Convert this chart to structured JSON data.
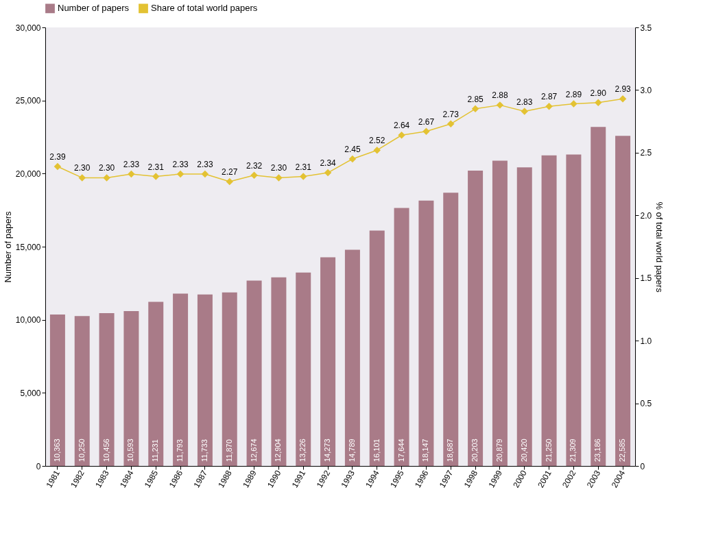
{
  "chart_data": {
    "type": "bar",
    "categories": [
      "1981",
      "1982",
      "1983",
      "1984",
      "1985",
      "1986",
      "1987",
      "1988",
      "1989",
      "1990",
      "1991",
      "1992",
      "1993",
      "1994",
      "1995",
      "1996",
      "1997",
      "1998",
      "1999",
      "2000",
      "2001",
      "2002",
      "2003",
      "2004"
    ],
    "ylabel": "Number of papers",
    "y2label": "% of total world papers",
    "ylim": [
      0,
      30000
    ],
    "yticks": [
      0,
      {
        "value": 5000,
        "label": "5,000"
      },
      {
        "value": 10000,
        "label": "10,000"
      },
      {
        "value": 15000,
        "label": "15,000"
      },
      {
        "value": 20000,
        "label": "20,000"
      },
      {
        "value": 25000,
        "label": "25,000"
      },
      {
        "value": 30000,
        "label": "30,000"
      }
    ],
    "y2lim": [
      0,
      3.5
    ],
    "y2ticks": [
      {
        "value": 0,
        "label": "0"
      },
      {
        "value": 0.5,
        "label": "0.5"
      },
      {
        "value": 1,
        "label": "1.0"
      },
      {
        "value": 1.5,
        "label": "1.5"
      },
      {
        "value": 2,
        "label": "2.0"
      },
      {
        "value": 2.5,
        "label": "2.5"
      },
      {
        "value": 3,
        "label": "3.0"
      },
      {
        "value": 3.5,
        "label": "3.5"
      }
    ],
    "series": [
      {
        "name": "Number of papers",
        "color": "#a97b88",
        "values": [
          10363,
          10250,
          10456,
          10593,
          11231,
          11793,
          11733,
          11870,
          12674,
          12904,
          13226,
          14273,
          14789,
          16101,
          17644,
          18147,
          18687,
          20203,
          20879,
          20420,
          21250,
          21309,
          23186,
          22585
        ],
        "value_labels": [
          "10,363",
          "10,250",
          "10,456",
          "10,593",
          "11,231",
          "11,793",
          "11,733",
          "11,870",
          "12,674",
          "12,904",
          "13,226",
          "14,273",
          "14,789",
          "16,101",
          "17,644",
          "18,147",
          "18,687",
          "20,203",
          "20,879",
          "20,420",
          "21,250",
          "21,309",
          "23,186",
          "22,585"
        ]
      },
      {
        "name": "Share of total world papers",
        "type": "line",
        "axis": "y2",
        "color": "#e3c233",
        "marker": "diamond",
        "line_style": "solid",
        "values": [
          2.39,
          2.3,
          2.3,
          2.33,
          2.31,
          2.33,
          2.33,
          2.27,
          2.32,
          2.3,
          2.31,
          2.34,
          2.45,
          2.52,
          2.64,
          2.67,
          2.73,
          2.85,
          2.88,
          2.83,
          2.87,
          2.89,
          2.9,
          2.93
        ],
        "value_labels": [
          "2.39",
          "2.30",
          "2.30",
          "2.33",
          "2.31",
          "2.33",
          "2.33",
          "2.27",
          "2.32",
          "2.30",
          "2.31",
          "2.34",
          "2.45",
          "2.52",
          "2.64",
          "2.67",
          "2.73",
          "2.85",
          "2.88",
          "2.83",
          "2.87",
          "2.89",
          "2.90",
          "2.93"
        ]
      }
    ],
    "legend": "top",
    "grid": false
  }
}
